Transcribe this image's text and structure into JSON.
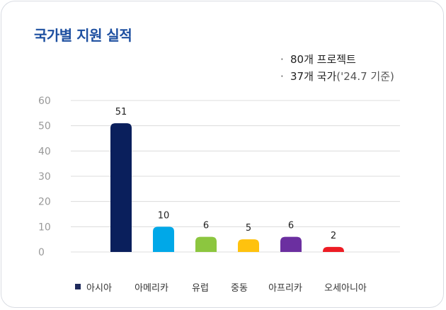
{
  "title": "국가별 지원 실적",
  "notes": [
    {
      "bullet": "·",
      "text": "80개 프로젝트",
      "suffix": ""
    },
    {
      "bullet": "·",
      "text": "37개 국가",
      "suffix": "('24.7 기준)"
    }
  ],
  "colors": {
    "title": "#1d4fa0",
    "grid": "#dcdcdc",
    "legend_swatch": "#1f2a5c"
  },
  "chart_data": {
    "type": "bar",
    "title": "국가별 지원 실적",
    "categories": [
      "아시아",
      "아메리카",
      "유럽",
      "중동",
      "아프리카",
      "오세아니아"
    ],
    "values": [
      51,
      10,
      6,
      5,
      6,
      2
    ],
    "bar_colors": [
      "#0a1f5c",
      "#00a8e8",
      "#8cc63f",
      "#ffc20e",
      "#6b2fa0",
      "#ed1c24"
    ],
    "y_ticks": [
      60,
      50,
      40,
      30,
      20,
      10,
      0
    ],
    "ylim": [
      0,
      60
    ],
    "grid": true,
    "legend_placement": "bottom",
    "xlabel": "",
    "ylabel": ""
  }
}
